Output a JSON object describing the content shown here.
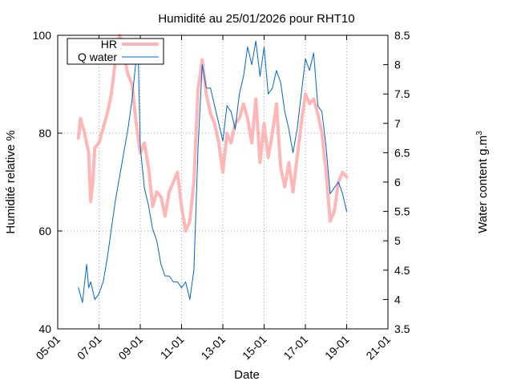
{
  "chart_data": {
    "type": "line",
    "title": "Humidité au 25/01/2026 pour RHT10",
    "xlabel": "Date",
    "ylabel_left": "Humidité relative %",
    "ylabel_right_base": "Water content g.m",
    "ylabel_right_exp": "3",
    "x_ticks": [
      "05-01",
      "07-01",
      "09-01",
      "11-01",
      "13-01",
      "15-01",
      "17-01",
      "19-01",
      "21-01"
    ],
    "x_range_days": [
      5,
      21
    ],
    "y_left_ticks": [
      "40",
      "60",
      "80",
      "100"
    ],
    "y_left_range": [
      40,
      100
    ],
    "y_right_ticks": [
      "3.5",
      "4",
      "4.5",
      "5",
      "5.5",
      "6",
      "6.5",
      "7",
      "7.5",
      "8",
      "8.5"
    ],
    "y_right_range": [
      3.5,
      8.5
    ],
    "grid": true,
    "legend_position": "top-left",
    "series": [
      {
        "name": "HR",
        "axis": "left",
        "color": "#ffb6b6",
        "x_days": [
          6.0,
          6.1,
          6.3,
          6.5,
          6.6,
          6.7,
          6.8,
          7.0,
          7.2,
          7.4,
          7.6,
          7.8,
          8.0,
          8.2,
          8.4,
          8.6,
          8.8,
          9.0,
          9.2,
          9.4,
          9.6,
          9.8,
          10.0,
          10.2,
          10.4,
          10.6,
          10.8,
          11.0,
          11.2,
          11.4,
          11.6,
          11.8,
          12.0,
          12.2,
          12.4,
          12.6,
          12.8,
          13.0,
          13.2,
          13.4,
          13.6,
          13.8,
          14.0,
          14.2,
          14.4,
          14.6,
          14.8,
          15.0,
          15.2,
          15.4,
          15.6,
          15.8,
          16.0,
          16.2,
          16.4,
          16.6,
          16.8,
          17.0,
          17.2,
          17.4,
          17.6,
          17.8,
          18.0,
          18.2,
          18.4,
          18.6,
          18.8,
          19.0
        ],
        "values": [
          79,
          83,
          80,
          76,
          66,
          70,
          77,
          78,
          81,
          84,
          88,
          95,
          100,
          96,
          92,
          90,
          82,
          76,
          78,
          73,
          65,
          68,
          67,
          63,
          68,
          70,
          72,
          65,
          60,
          62,
          70,
          89,
          95,
          88,
          84,
          82,
          78,
          72,
          80,
          78,
          82,
          83,
          86,
          83,
          78,
          87,
          74,
          82,
          75,
          80,
          86,
          73,
          69,
          74,
          68,
          75,
          82,
          88,
          86,
          87,
          84,
          80,
          72,
          62,
          64,
          70,
          72,
          71
        ]
      },
      {
        "name": "Q water",
        "axis": "right",
        "color": "#0066cc",
        "x_days": [
          6.0,
          6.2,
          6.4,
          6.5,
          6.6,
          6.8,
          7.0,
          7.2,
          7.4,
          7.6,
          7.8,
          8.0,
          8.2,
          8.4,
          8.6,
          8.8,
          8.9,
          9.0,
          9.2,
          9.4,
          9.6,
          9.8,
          10.0,
          10.2,
          10.4,
          10.6,
          10.8,
          11.0,
          11.2,
          11.4,
          11.6,
          11.8,
          12.0,
          12.2,
          12.4,
          12.6,
          12.8,
          13.0,
          13.2,
          13.4,
          13.6,
          13.8,
          14.0,
          14.2,
          14.4,
          14.6,
          14.8,
          15.0,
          15.2,
          15.4,
          15.6,
          15.8,
          16.0,
          16.2,
          16.4,
          16.6,
          16.8,
          17.0,
          17.2,
          17.4,
          17.6,
          17.8,
          18.0,
          18.2,
          18.4,
          18.6,
          18.8,
          19.0
        ],
        "values": [
          4.2,
          3.95,
          4.6,
          4.2,
          4.3,
          4.0,
          4.1,
          4.3,
          4.7,
          5.2,
          5.7,
          6.1,
          6.5,
          6.9,
          7.4,
          8.1,
          8.2,
          6.6,
          5.9,
          5.6,
          5.2,
          5.0,
          4.6,
          4.4,
          4.4,
          4.3,
          4.3,
          4.2,
          4.3,
          4.0,
          4.5,
          6.6,
          8.0,
          7.6,
          7.6,
          7.3,
          7.0,
          6.7,
          7.3,
          7.2,
          6.9,
          7.5,
          7.8,
          8.3,
          8.0,
          8.4,
          7.8,
          8.3,
          7.5,
          7.6,
          7.9,
          7.7,
          7.2,
          6.9,
          6.5,
          6.9,
          7.5,
          8.1,
          7.9,
          8.2,
          7.3,
          7.2,
          6.6,
          5.8,
          5.9,
          6.0,
          5.8,
          5.5
        ]
      }
    ]
  }
}
